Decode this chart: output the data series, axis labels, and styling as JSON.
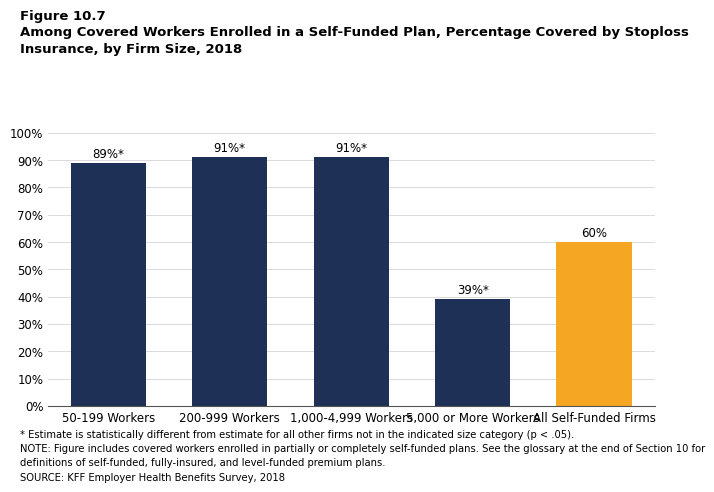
{
  "figure_label": "Figure 10.7",
  "title_line1": "Among Covered Workers Enrolled in a Self-Funded Plan, Percentage Covered by Stoploss",
  "title_line2": "Insurance, by Firm Size, 2018",
  "categories": [
    "50-199 Workers",
    "200-999 Workers",
    "1,000-4,999 Workers",
    "5,000 or More Workers",
    "All Self-Funded Firms"
  ],
  "values": [
    89,
    91,
    91,
    39,
    60
  ],
  "bar_colors": [
    "#1e3056",
    "#1e3056",
    "#1e3056",
    "#1e3056",
    "#f5a623"
  ],
  "bar_labels": [
    "89%*",
    "91%*",
    "91%*",
    "39%*",
    "60%"
  ],
  "ylim": [
    0,
    100
  ],
  "yticks": [
    0,
    10,
    20,
    30,
    40,
    50,
    60,
    70,
    80,
    90,
    100
  ],
  "ytick_labels": [
    "0%",
    "10%",
    "20%",
    "30%",
    "40%",
    "50%",
    "60%",
    "70%",
    "80%",
    "90%",
    "100%"
  ],
  "footnote1": "* Estimate is statistically different from estimate for all other firms not in the indicated size category (p < .05).",
  "footnote2": "NOTE: Figure includes covered workers enrolled in partially or completely self-funded plans. See the glossary at the end of Section 10 for",
  "footnote3": "definitions of self-funded, fully-insured, and level-funded premium plans.",
  "footnote4": "SOURCE: KFF Employer Health Benefits Survey, 2018",
  "background_color": "#ffffff"
}
